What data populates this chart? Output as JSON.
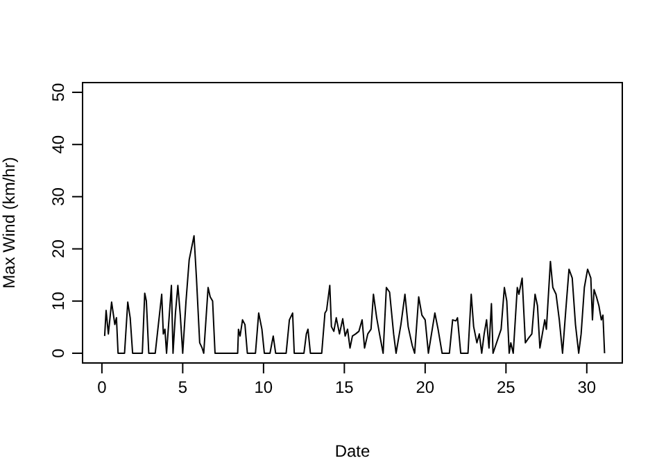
{
  "chart_data": {
    "type": "line",
    "xlabel": "Date",
    "ylabel": "Max Wind (km/hr)",
    "xlim": [
      -1.24,
      32.24
    ],
    "ylim": [
      -2,
      52
    ],
    "xticks": [
      0,
      5,
      10,
      15,
      20,
      25,
      30
    ],
    "yticks": [
      0,
      10,
      20,
      30,
      40,
      50
    ],
    "marker": "none",
    "line_style": "solid",
    "series": [
      {
        "color": "#000000",
        "x": [
          0.17,
          0.26,
          0.4,
          0.6,
          0.8,
          0.9,
          1.0,
          1.4,
          1.6,
          1.75,
          1.9,
          2.5,
          2.65,
          2.75,
          2.9,
          3.3,
          3.7,
          3.8,
          3.9,
          4.0,
          4.3,
          4.4,
          4.55,
          4.7,
          4.85,
          5.0,
          5.2,
          5.4,
          5.7,
          5.85,
          6.05,
          6.2,
          6.3,
          6.57,
          6.7,
          6.85,
          7.0,
          8.4,
          8.45,
          8.55,
          8.7,
          8.85,
          9.0,
          9.5,
          9.7,
          9.9,
          10.05,
          10.4,
          10.6,
          10.75,
          11.4,
          11.6,
          11.8,
          11.9,
          12.5,
          12.65,
          12.75,
          12.9,
          13.6,
          13.8,
          13.9,
          14.1,
          14.2,
          14.35,
          14.5,
          14.7,
          14.9,
          15.05,
          15.2,
          15.35,
          15.5,
          15.7,
          15.9,
          16.1,
          16.25,
          16.45,
          16.65,
          16.8,
          17.0,
          17.2,
          17.4,
          17.6,
          17.8,
          18.05,
          18.2,
          18.5,
          18.75,
          18.95,
          19.2,
          19.35,
          19.6,
          19.8,
          20.0,
          20.2,
          20.6,
          20.8,
          21.05,
          21.5,
          21.7,
          21.9,
          22.0,
          22.2,
          22.65,
          22.85,
          23.0,
          23.2,
          23.35,
          23.5,
          23.65,
          23.8,
          23.95,
          24.1,
          24.2,
          24.7,
          24.9,
          25.05,
          25.2,
          25.3,
          25.45,
          25.7,
          25.8,
          26.0,
          26.2,
          26.4,
          26.6,
          26.8,
          26.95,
          27.1,
          27.25,
          27.4,
          27.5,
          27.75,
          27.9,
          28.1,
          28.3,
          28.5,
          28.7,
          28.9,
          29.1,
          29.3,
          29.5,
          29.65,
          29.85,
          30.05,
          30.25,
          30.35,
          30.45,
          30.6,
          30.75,
          30.9,
          31.0,
          31.1
        ],
        "values": [
          3.3,
          8.2,
          3.7,
          9.8,
          5.5,
          6.8,
          0,
          0,
          9.8,
          6.8,
          0,
          0,
          11.5,
          10,
          0,
          0,
          11.3,
          3.7,
          4.6,
          0,
          13,
          0,
          7.7,
          13,
          7.3,
          0,
          9.8,
          17.9,
          22.5,
          14.4,
          2,
          1,
          0,
          12.6,
          10.8,
          10,
          0,
          0,
          4.6,
          3.3,
          6.4,
          5.5,
          0,
          0,
          7.7,
          4.6,
          0,
          0,
          3.3,
          0,
          0,
          6.4,
          7.7,
          0,
          0,
          3.7,
          4.6,
          0,
          0,
          7.7,
          8.2,
          13,
          5.1,
          4.2,
          6.8,
          3.7,
          6.6,
          3.3,
          4.6,
          1,
          3.3,
          3.7,
          4.2,
          6.4,
          1,
          3.7,
          4.6,
          11.3,
          6.8,
          3.3,
          0,
          12.6,
          11.7,
          3.7,
          0,
          5.5,
          11.3,
          5.1,
          1.5,
          0,
          10.8,
          7.3,
          6.4,
          0,
          7.7,
          4.6,
          0,
          0,
          6.4,
          6.2,
          6.8,
          0,
          0,
          11.3,
          5.1,
          2,
          3.7,
          0,
          3.7,
          6.4,
          1,
          9.5,
          0,
          4.6,
          12.6,
          10,
          0,
          2,
          0,
          12.6,
          11.3,
          14.4,
          2,
          2.9,
          3.7,
          11.3,
          9.1,
          1,
          3.7,
          6.4,
          4.6,
          17.6,
          12.6,
          11.3,
          6.4,
          0,
          8.2,
          16.1,
          14.4,
          5.5,
          0,
          3.7,
          12.6,
          16.1,
          14.4,
          6.4,
          12.2,
          10.8,
          9.1,
          6.4,
          7.3,
          0
        ]
      }
    ]
  }
}
